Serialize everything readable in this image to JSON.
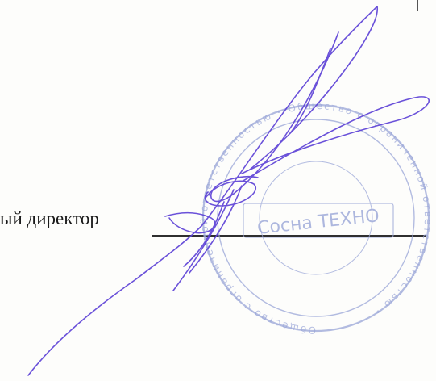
{
  "signature_block": {
    "position_text": "ый директор"
  },
  "stamp": {
    "center_text": "Сосна ТЕХНО",
    "ring_text": "Общество с ограниченной ответственностью",
    "ink_color": "#9aa6d8"
  },
  "signature": {
    "ink_color": "#5b3fd6"
  },
  "colors": {
    "text": "#1a1a1a",
    "line": "#2f2f2f",
    "paper": "#fdfdfb"
  }
}
